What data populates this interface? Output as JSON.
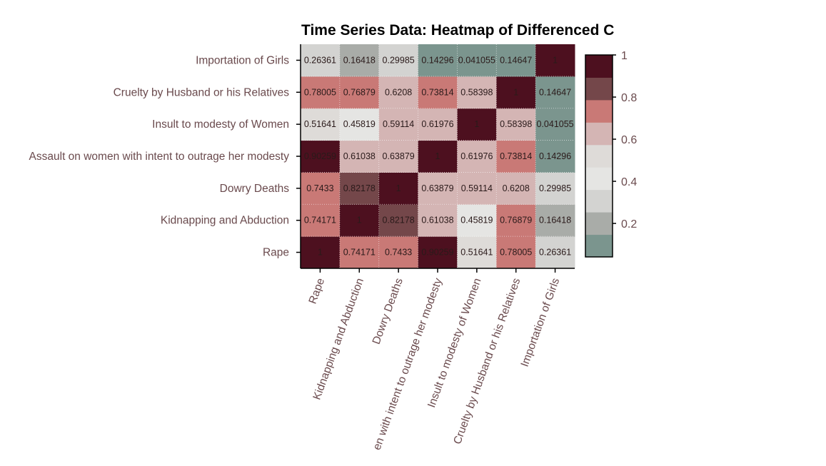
{
  "chart_data": {
    "type": "heatmap",
    "title": "Time Series Data: Heatmap of Differenced C",
    "categories": [
      "Rape",
      "Kidnapping and Abduction",
      "Dowry Deaths",
      "Assault on women with intent to outrage her modesty",
      "Insult to modesty of Women",
      "Cruelty by Husband or his Relatives",
      "Importation of Girls"
    ],
    "x_tick_labels": [
      "Rape",
      "Kidnapping and Abduction",
      "Dowry Deaths",
      "en with intent to outrage her modesty",
      "Insult to modesty of Women",
      "Cruelty by Husband or his Relatives",
      "Importation of Girls"
    ],
    "matrix": [
      [
        1,
        0.74171,
        0.7433,
        0.90259,
        0.51641,
        0.78005,
        0.26361
      ],
      [
        0.74171,
        1,
        0.82178,
        0.61038,
        0.45819,
        0.76879,
        0.16418
      ],
      [
        0.7433,
        0.82178,
        1,
        0.63879,
        0.59114,
        0.6208,
        0.29985
      ],
      [
        0.90259,
        0.61038,
        0.63879,
        1,
        0.61976,
        0.73814,
        0.14296
      ],
      [
        0.51641,
        0.45819,
        0.59114,
        0.61976,
        1,
        0.58398,
        0.041055
      ],
      [
        0.78005,
        0.76879,
        0.6208,
        0.73814,
        0.58398,
        1,
        0.14647
      ],
      [
        0.26361,
        0.16418,
        0.29985,
        0.14296,
        0.041055,
        0.14647,
        1
      ]
    ],
    "labels": [
      [
        "1",
        "0.74171",
        "0.7433",
        "0.90259",
        "0.51641",
        "0.78005",
        "0.26361"
      ],
      [
        "0.74171",
        "1",
        "0.82178",
        "0.61038",
        "0.45819",
        "0.76879",
        "0.16418"
      ],
      [
        "0.7433",
        "0.82178",
        "1",
        "0.63879",
        "0.59114",
        "0.6208",
        "0.29985"
      ],
      [
        "0.90259",
        "0.61038",
        "0.63879",
        "1",
        "0.61976",
        "0.73814",
        "0.14296"
      ],
      [
        "0.51641",
        "0.45819",
        "0.59114",
        "0.61976",
        "1",
        "0.58398",
        "0.041055"
      ],
      [
        "0.78005",
        "0.76879",
        "0.6208",
        "0.73814",
        "0.58398",
        "1",
        "0.14647"
      ],
      [
        "0.26361",
        "0.16418",
        "0.29985",
        "0.14296",
        "0.041055",
        "0.14647",
        "1"
      ]
    ],
    "colorbar": {
      "range": [
        0.041055,
        1
      ],
      "ticks": [
        0.2,
        0.4,
        0.6,
        0.8,
        1
      ],
      "tick_labels": [
        "0.2",
        "0.4",
        "0.6",
        "0.8",
        "1"
      ]
    },
    "colors": {
      "scale": [
        "#7b958e",
        "#a9aca8",
        "#d3d3d1",
        "#e5e5e3",
        "#dedbd8",
        "#d4b5b4",
        "#c97976",
        "#74474a",
        "#4d101f"
      ],
      "label_color": "#6a4a4d",
      "text_color": "#2a1a1a",
      "title_color": "#000000"
    }
  }
}
